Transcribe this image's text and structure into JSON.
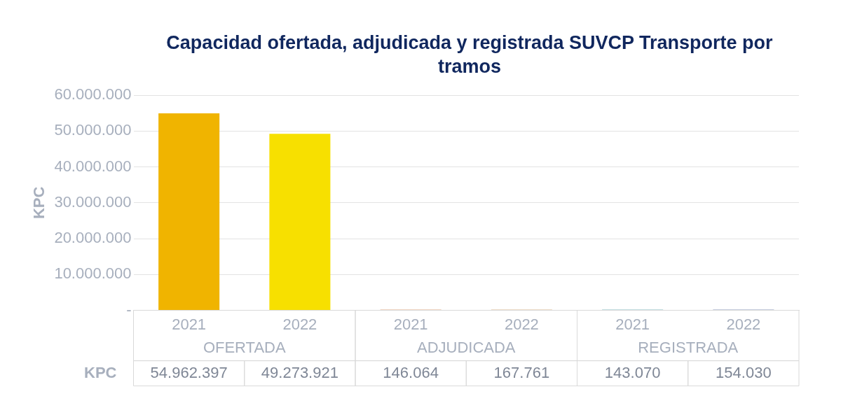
{
  "chart_data": {
    "type": "bar",
    "title": "Capacidad ofertada, adjudicada y registrada SUVCP Transporte por tramos",
    "ylabel": "KPC",
    "categories": [
      "2021",
      "2022",
      "2021",
      "2022",
      "2021",
      "2022"
    ],
    "values": [
      54962397,
      49273921,
      146064,
      167761,
      143070,
      154030
    ],
    "colors": [
      "#f0b400",
      "#f7e000",
      "#c55a11",
      "#c07a2a",
      "#0e7c86",
      "#1f3a80"
    ],
    "value_labels": [
      "54.962.397",
      "49.273.921",
      "146.064",
      "167.761",
      "143.070",
      "154.030"
    ],
    "annotations": [
      "OFERTADA",
      "ADJUDICADA",
      "REGISTRADA"
    ],
    "ylim": [
      0,
      60000000
    ],
    "yticks": [
      {
        "value": 0,
        "label": "-"
      },
      {
        "value": 10000000,
        "label": "10.000.000"
      },
      {
        "value": 20000000,
        "label": "20.000.000"
      },
      {
        "value": 30000000,
        "label": "30.000.000"
      },
      {
        "value": 40000000,
        "label": "40.000.000"
      },
      {
        "value": 50000000,
        "label": "50.000.000"
      },
      {
        "value": 60000000,
        "label": "60.000.000"
      }
    ],
    "grid": "y",
    "legend": false
  }
}
